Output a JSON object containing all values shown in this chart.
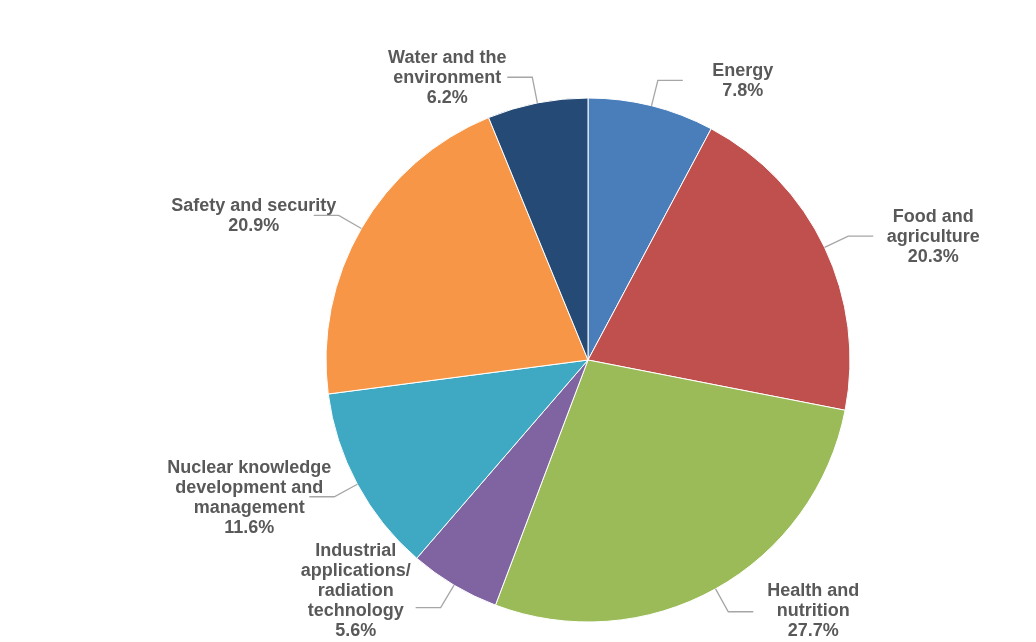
{
  "chart_data": {
    "type": "pie",
    "categories": [
      "Energy",
      "Food and\nagriculture",
      "Health and\nnutrition",
      "Industrial\napplications/\nradiation\ntechnology",
      "Nuclear knowledge\ndevelopment and\nmanagement",
      "Safety and security",
      "Water and the\nenvironment"
    ],
    "values": [
      7.8,
      20.3,
      27.7,
      5.6,
      11.6,
      20.9,
      6.2
    ],
    "value_labels": [
      "7.8%",
      "20.3%",
      "27.7%",
      "5.6%",
      "11.6%",
      "20.9%",
      "6.2%"
    ],
    "colors": [
      "#4a7ebb",
      "#c0504d",
      "#9bbb59",
      "#8064a2",
      "#3fa9c4",
      "#f79646",
      "#254a75"
    ],
    "legend": false
  }
}
